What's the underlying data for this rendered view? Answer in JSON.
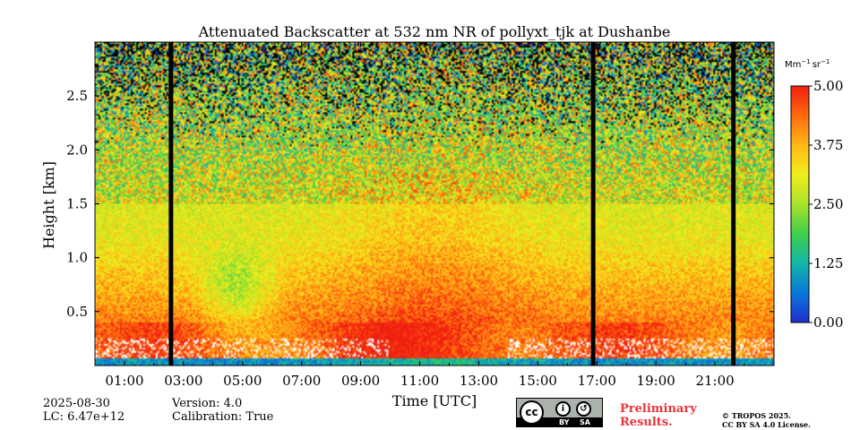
{
  "chart_data": {
    "type": "heatmap",
    "title": "Attenuated Backscatter at 532 nm NR of pollyxt_tjk at Dushanbe",
    "xlabel": "Time [UTC]",
    "ylabel": "Height [km]",
    "x_range_hours": [
      0.0,
      23.0
    ],
    "y_range_km": [
      0.0,
      3.0
    ],
    "x_ticks": [
      {
        "value": 1,
        "label": "01:00"
      },
      {
        "value": 3,
        "label": "03:00"
      },
      {
        "value": 5,
        "label": "05:00"
      },
      {
        "value": 7,
        "label": "07:00"
      },
      {
        "value": 9,
        "label": "09:00"
      },
      {
        "value": 11,
        "label": "11:00"
      },
      {
        "value": 13,
        "label": "13:00"
      },
      {
        "value": 15,
        "label": "15:00"
      },
      {
        "value": 17,
        "label": "17:00"
      },
      {
        "value": 19,
        "label": "19:00"
      },
      {
        "value": 21,
        "label": "21:00"
      }
    ],
    "y_ticks": [
      {
        "value": 0.5,
        "label": "0.5"
      },
      {
        "value": 1.0,
        "label": "1.0"
      },
      {
        "value": 1.5,
        "label": "1.5"
      },
      {
        "value": 2.0,
        "label": "2.0"
      },
      {
        "value": 2.5,
        "label": "2.5"
      }
    ],
    "colorbar": {
      "unit": "Mm$^{-1}$sr$^{-1}$",
      "unit_main": "Mm",
      "unit_exp1": "−1",
      "unit_mid": "sr",
      "unit_exp2": "−1",
      "min": 0.0,
      "max": 5.0,
      "ticks": [
        {
          "value": 0.0,
          "label": "0.00"
        },
        {
          "value": 1.25,
          "label": "1.25"
        },
        {
          "value": 2.5,
          "label": "2.50"
        },
        {
          "value": 3.75,
          "label": "3.75"
        },
        {
          "value": 5.0,
          "label": "5.00"
        }
      ],
      "colors": [
        "#1f2fd0",
        "#0a78d8",
        "#12b6a8",
        "#3fce4a",
        "#a8e22a",
        "#f0ee1c",
        "#ffb818",
        "#ff6a0e",
        "#f02010"
      ]
    },
    "no_data_periods_hours": [
      [
        2.5,
        2.65
      ],
      [
        16.8,
        16.95
      ],
      [
        21.55,
        21.7
      ]
    ],
    "profile_hint": {
      "description": "strong near-surface layer up to ~0.4 km (values 4-5), gradually decreasing to ~2.5-3 above 1 km, noisy above 2 km",
      "surface_band_km": [
        0.0,
        0.06
      ]
    }
  },
  "footer": {
    "date": "2025-08-30",
    "lc": "LC: 6.47e+12",
    "version": "Version: 4.0",
    "calibration": "Calibration: True",
    "preliminary_line1": "Preliminary",
    "preliminary_line2": "Results.",
    "copyright_line1": "© TROPOS 2025.",
    "copyright_line2": "CC BY SA 4.0 License.",
    "cc_badge": {
      "main": "cc",
      "by": "BY",
      "sa": "SA"
    }
  }
}
